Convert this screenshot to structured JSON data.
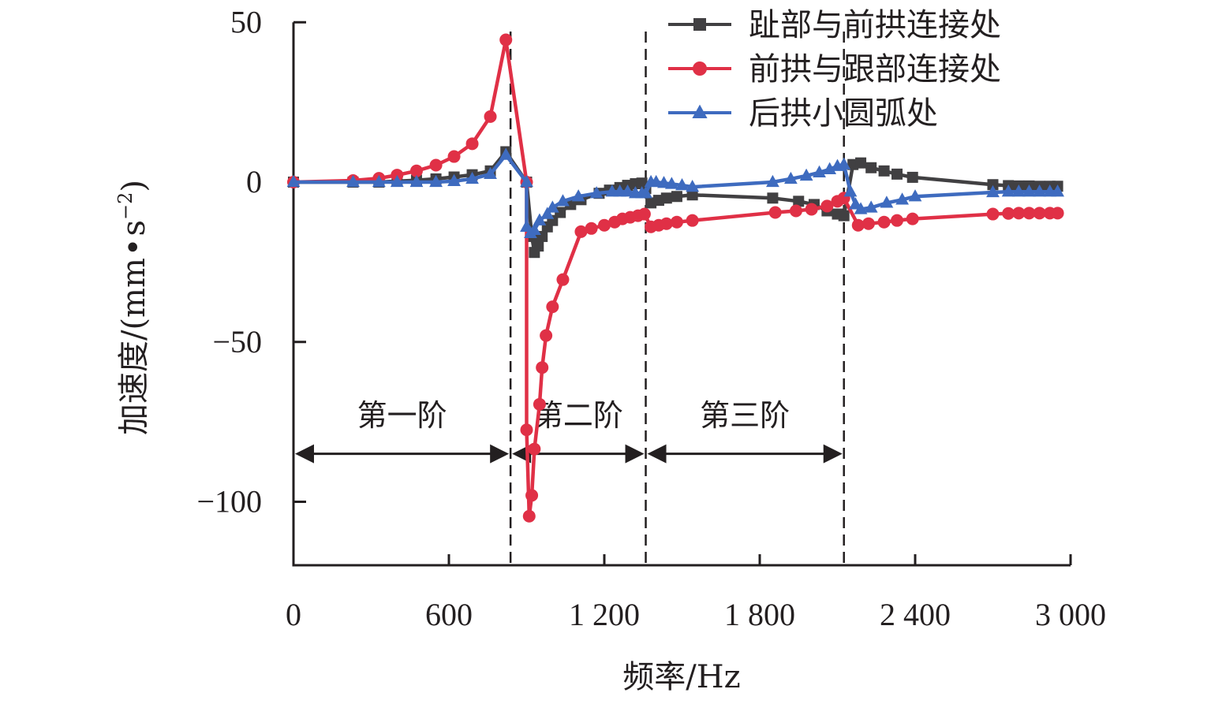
{
  "chart_data": {
    "type": "line",
    "title": "",
    "xlabel": "频率/Hz",
    "ylabel_main": "加速度/(mm",
    "ylabel_dot": "•",
    "ylabel_unit": "s",
    "ylabel_exp": "−2",
    "ylabel_close": ")",
    "xlim": [
      0,
      3000
    ],
    "ylim": [
      -120,
      50
    ],
    "x_ticks": [
      0,
      600,
      1200,
      1800,
      2400,
      3000
    ],
    "x_tick_labels": [
      "0",
      "600",
      "1 200",
      "1 800",
      "2 400",
      "3 000"
    ],
    "y_ticks": [
      50,
      0,
      -50,
      -100
    ],
    "y_tick_labels": [
      "50",
      "0",
      "−50",
      "−100"
    ],
    "grid": false,
    "legend_position": "top-right",
    "stage_boundaries": [
      838,
      1360,
      2125
    ],
    "stages": [
      {
        "label": "第一阶",
        "from": 0,
        "to": 838
      },
      {
        "label": "第二阶",
        "from": 838,
        "to": 1360
      },
      {
        "label": "第三阶",
        "from": 1360,
        "to": 2125
      }
    ],
    "stage_arrow_y": -85,
    "series": [
      {
        "name": "趾部与前拱连接处",
        "color": "#414042",
        "marker": "square",
        "x": [
          0,
          230,
          330,
          400,
          475,
          550,
          620,
          690,
          760,
          820,
          900,
          920,
          930,
          945,
          960,
          980,
          1000,
          1030,
          1070,
          1110,
          1180,
          1220,
          1260,
          1290,
          1320,
          1345,
          1360,
          1380,
          1410,
          1440,
          1480,
          1540,
          1850,
          1950,
          2010,
          2060,
          2100,
          2125,
          2160,
          2190,
          2230,
          2280,
          2330,
          2390,
          2700,
          2760,
          2800,
          2840,
          2880,
          2920,
          2950
        ],
        "y": [
          0,
          0,
          0,
          0.3,
          0.6,
          1,
          1.6,
          2.3,
          3.5,
          9.5,
          0,
          -17,
          -22,
          -20,
          -17,
          -14,
          -12,
          -9.5,
          -7,
          -5.5,
          -3.5,
          -2.5,
          -1.7,
          -1,
          -0.5,
          -0.3,
          -2,
          -6.5,
          -5.7,
          -5,
          -4.5,
          -4,
          -5,
          -6,
          -7,
          -9,
          -10,
          -10.5,
          5.5,
          6,
          4.5,
          3.5,
          2.5,
          1.5,
          -0.8,
          -1.1,
          -1.2,
          -1.2,
          -1.3,
          -1.3,
          -1.3
        ]
      },
      {
        "name": "前拱与跟部连接处",
        "color": "#e03046",
        "marker": "circle",
        "x": [
          0,
          230,
          330,
          400,
          475,
          550,
          620,
          690,
          760,
          820,
          900,
          900,
          910,
          920,
          930,
          950,
          960,
          975,
          1000,
          1040,
          1110,
          1150,
          1200,
          1240,
          1270,
          1300,
          1330,
          1355,
          1380,
          1410,
          1440,
          1480,
          1540,
          1860,
          1940,
          2000,
          2060,
          2100,
          2125,
          2180,
          2220,
          2280,
          2330,
          2390,
          2700,
          2760,
          2800,
          2840,
          2880,
          2920,
          2950
        ],
        "y": [
          0,
          0.5,
          1.2,
          2.2,
          3.5,
          5.3,
          8,
          12,
          20.5,
          44.5,
          0,
          -77.5,
          -104.5,
          -98,
          -83.5,
          -69.5,
          -58,
          -48,
          -39,
          -30.5,
          -15.5,
          -14.5,
          -13.5,
          -12.5,
          -11.5,
          -11,
          -10.5,
          -10,
          -14,
          -13.5,
          -13,
          -12.5,
          -12,
          -9.5,
          -9,
          -8.5,
          -7.5,
          -6,
          -5,
          -13.5,
          -13,
          -12.5,
          -12,
          -11.5,
          -10,
          -9.8,
          -9.7,
          -9.7,
          -9.7,
          -9.7,
          -9.7
        ]
      },
      {
        "name": "后拱小圆弧处",
        "color": "#3e6bbf",
        "marker": "triangle",
        "x": [
          0,
          230,
          330,
          400,
          475,
          550,
          620,
          690,
          760,
          820,
          900,
          900,
          915,
          930,
          950,
          980,
          1000,
          1040,
          1100,
          1170,
          1230,
          1260,
          1290,
          1320,
          1345,
          1360,
          1380,
          1400,
          1430,
          1460,
          1500,
          1540,
          1850,
          1920,
          1980,
          2030,
          2070,
          2100,
          2125,
          2150,
          2170,
          2190,
          2230,
          2290,
          2350,
          2400,
          2700,
          2760,
          2800,
          2840,
          2880,
          2920,
          2950
        ],
        "y": [
          0,
          0,
          0,
          0,
          0,
          0,
          0.3,
          1,
          2.5,
          8.5,
          0,
          -14,
          -16,
          -15,
          -12,
          -10,
          -8,
          -6,
          -4.5,
          -3.5,
          -3,
          -3,
          -3,
          -3.5,
          -3.5,
          -3.5,
          0,
          0,
          -0.3,
          -0.6,
          -1,
          -1.5,
          0,
          1,
          2,
          3,
          4,
          5,
          5.5,
          -3,
          -7,
          -8.5,
          -8,
          -6.5,
          -5.5,
          -4.5,
          -3.2,
          -3,
          -3,
          -3,
          -3,
          -3,
          -3
        ]
      }
    ]
  }
}
